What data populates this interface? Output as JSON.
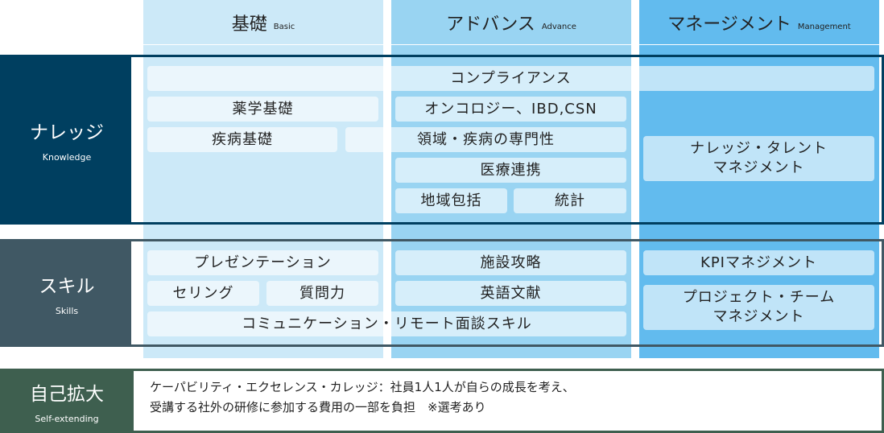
{
  "colors": {
    "basic": "#cce9f8",
    "advance": "#99d4f2",
    "management": "#62bbee",
    "knowledge": "#003f60",
    "skills": "#405864",
    "self": "#3e5f4f"
  },
  "columns": [
    {
      "jp": "基礎",
      "en": "Basic"
    },
    {
      "jp": "アドバンス",
      "en": "Advance"
    },
    {
      "jp": "マネージメント",
      "en": "Management"
    }
  ],
  "rows": {
    "knowledge": {
      "jp": "ナレッジ",
      "en": "Knowledge",
      "items": [
        "コンプライアンス",
        "薬学基礎",
        "疾病基礎",
        "領域・疾病の専門性",
        "オンコロジー、IBD,CSN",
        "医療連携",
        "地域包括",
        "統計",
        "ナレッジ・タレント\nマネジメント"
      ]
    },
    "skills": {
      "jp": "スキル",
      "en": "Skills",
      "items": [
        "プレゼンテーション",
        "セリング",
        "質問力",
        "コミュニケーション・リモート面談スキル",
        "施設攻略",
        "英語文献",
        "KPIマネジメント",
        "プロジェクト・チーム\nマネジメント"
      ]
    },
    "self": {
      "jp": "自己拡大",
      "en": "Self-extending",
      "lines": [
        "ケーパビリティ・エクセレンス・カレッジ：社員1人1人が自らの成長を考え、",
        "受講する社外の研修に参加する費用の一部を負担　※選考あり"
      ]
    }
  }
}
